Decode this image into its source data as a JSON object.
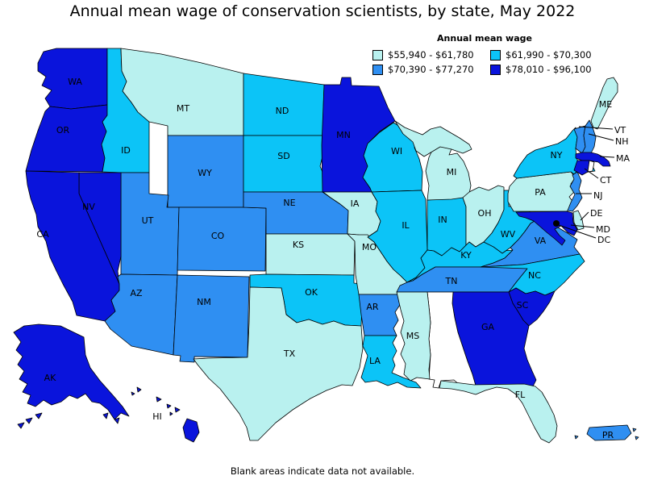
{
  "title": "Annual mean wage of conservation scientists, by state, May 2022",
  "footer": "Blank areas indicate data not available.",
  "legend": {
    "title": "Annual mean wage",
    "bins": [
      {
        "label": "$55,940 - $61,780",
        "color": "#b9f1ef"
      },
      {
        "label": "$61,990 - $70,300",
        "color": "#0cc4f7"
      },
      {
        "label": "$70,390 - $77,270",
        "color": "#2f8ff2"
      },
      {
        "label": "$78,010 - $96,100",
        "color": "#0a14dc"
      }
    ],
    "no_data_color": "#ffffff"
  },
  "map": {
    "stroke_color": "#000000",
    "dc_marker_color": "#000000",
    "states": [
      {
        "abbr": "WA",
        "bin": 3
      },
      {
        "abbr": "OR",
        "bin": 3
      },
      {
        "abbr": "ID",
        "bin": 1
      },
      {
        "abbr": "MT",
        "bin": 0
      },
      {
        "abbr": "WY",
        "bin": 2
      },
      {
        "abbr": "UT",
        "bin": 2
      },
      {
        "abbr": "CO",
        "bin": 2
      },
      {
        "abbr": "NV",
        "bin": 3
      },
      {
        "abbr": "CA",
        "bin": 3
      },
      {
        "abbr": "AZ",
        "bin": 2
      },
      {
        "abbr": "NM",
        "bin": 2
      },
      {
        "abbr": "ND",
        "bin": 1
      },
      {
        "abbr": "SD",
        "bin": 1
      },
      {
        "abbr": "NE",
        "bin": 2
      },
      {
        "abbr": "KS",
        "bin": 0
      },
      {
        "abbr": "OK",
        "bin": 1
      },
      {
        "abbr": "TX",
        "bin": 0
      },
      {
        "abbr": "MN",
        "bin": 3
      },
      {
        "abbr": "IA",
        "bin": 0
      },
      {
        "abbr": "MO",
        "bin": 0
      },
      {
        "abbr": "AR",
        "bin": 2
      },
      {
        "abbr": "LA",
        "bin": 1
      },
      {
        "abbr": "WI",
        "bin": 1
      },
      {
        "abbr": "IL",
        "bin": 1
      },
      {
        "abbr": "IN",
        "bin": 1
      },
      {
        "abbr": "MI",
        "bin": 0
      },
      {
        "abbr": "OH",
        "bin": 0
      },
      {
        "abbr": "KY",
        "bin": 1
      },
      {
        "abbr": "TN",
        "bin": 2
      },
      {
        "abbr": "WV",
        "bin": 1
      },
      {
        "abbr": "VA",
        "bin": 2
      },
      {
        "abbr": "NC",
        "bin": 1
      },
      {
        "abbr": "SC",
        "bin": 3
      },
      {
        "abbr": "GA",
        "bin": 3
      },
      {
        "abbr": "AL",
        "bin": null
      },
      {
        "abbr": "MS",
        "bin": 0
      },
      {
        "abbr": "FL",
        "bin": 0
      },
      {
        "abbr": "PA",
        "bin": 0
      },
      {
        "abbr": "NY",
        "bin": 1
      },
      {
        "abbr": "NJ",
        "bin": 2
      },
      {
        "abbr": "DE",
        "bin": 0
      },
      {
        "abbr": "MD",
        "bin": 3
      },
      {
        "abbr": "VT",
        "bin": 2
      },
      {
        "abbr": "NH",
        "bin": 2
      },
      {
        "abbr": "MA",
        "bin": 3
      },
      {
        "abbr": "CT",
        "bin": 3
      },
      {
        "abbr": "RI",
        "bin": null
      },
      {
        "abbr": "ME",
        "bin": 0
      },
      {
        "abbr": "AK",
        "bin": 3
      },
      {
        "abbr": "HI",
        "bin": 3
      },
      {
        "abbr": "PR",
        "bin": 2
      },
      {
        "abbr": "DC",
        "bin": 3
      }
    ]
  },
  "chart_data": {
    "type": "choropleth",
    "title": "Annual mean wage of conservation scientists, by state, May 2022",
    "legend_title": "Annual mean wage",
    "bins": [
      "$55,940 - $61,780",
      "$61,990 - $70,300",
      "$70,390 - $77,270",
      "$78,010 - $96,100"
    ],
    "series": [
      {
        "name": "$55,940 - $61,780",
        "states": [
          "MT",
          "IA",
          "KS",
          "MO",
          "TX",
          "MS",
          "FL",
          "OH",
          "MI",
          "PA",
          "DE",
          "ME"
        ]
      },
      {
        "name": "$61,990 - $70,300",
        "states": [
          "ID",
          "ND",
          "SD",
          "OK",
          "LA",
          "WI",
          "IL",
          "IN",
          "KY",
          "WV",
          "NY",
          "NC"
        ]
      },
      {
        "name": "$70,390 - $77,270",
        "states": [
          "WY",
          "UT",
          "CO",
          "AZ",
          "NM",
          "NE",
          "AR",
          "TN",
          "VA",
          "VT",
          "NH",
          "NJ",
          "PR"
        ]
      },
      {
        "name": "$78,010 - $96,100",
        "states": [
          "WA",
          "OR",
          "CA",
          "NV",
          "MN",
          "GA",
          "SC",
          "AK",
          "HI",
          "MA",
          "CT",
          "MD",
          "DC"
        ]
      }
    ],
    "no_data": [
      "AL",
      "RI"
    ],
    "note": "Blank areas indicate data not available."
  }
}
